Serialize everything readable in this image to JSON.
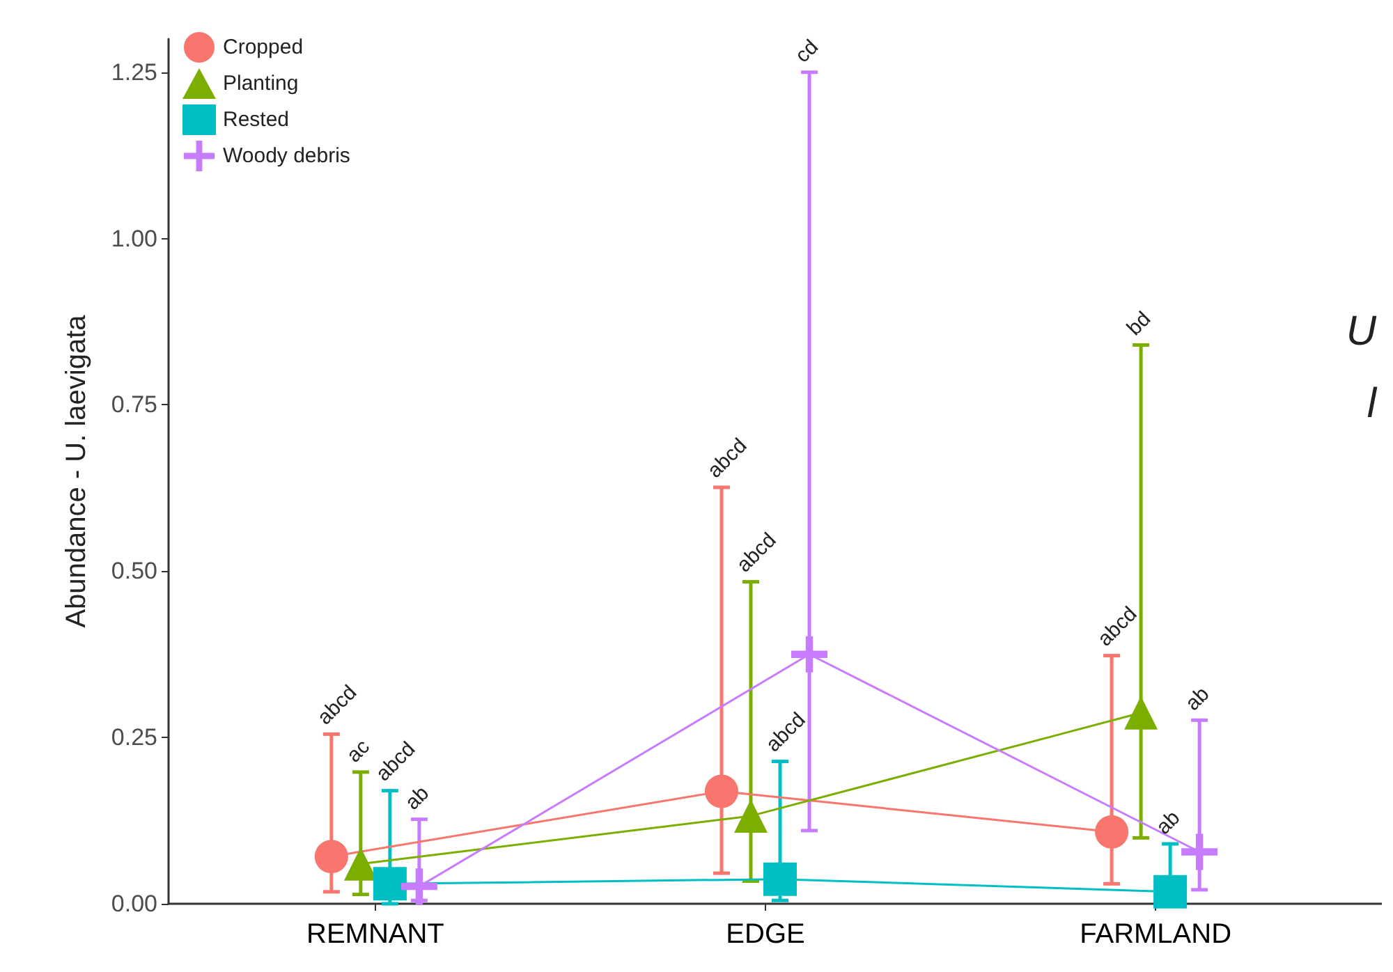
{
  "chart_data": {
    "type": "line",
    "ylabel": "Abundance - U. laevigata",
    "categories": [
      "REMNANT",
      "EDGE",
      "FARMLAND"
    ],
    "ylim": [
      0,
      1.3
    ],
    "yticks": [
      {
        "value": 0,
        "label": "0.00"
      },
      {
        "value": 0.25,
        "label": "0.25"
      },
      {
        "value": 0.5,
        "label": "0.50"
      },
      {
        "value": 0.75,
        "label": "0.75"
      },
      {
        "value": 1,
        "label": "1.00"
      },
      {
        "value": 1.25,
        "label": "1.25"
      }
    ],
    "grid": false,
    "legend": "top left",
    "line_style": "solid",
    "series": [
      {
        "name": "Cropped",
        "color": "#f8766d",
        "marker": "circle",
        "values": [
          0.071,
          0.169,
          0.108
        ],
        "errors": [
          [
            0.018,
            0.255
          ],
          [
            0.046,
            0.626
          ],
          [
            0.03,
            0.373
          ]
        ]
      },
      {
        "name": "Planting",
        "color": "#7cae00",
        "marker": "triangle",
        "values": [
          0.06,
          0.132,
          0.287
        ],
        "errors": [
          [
            0.014,
            0.198
          ],
          [
            0.034,
            0.484
          ],
          [
            0.099,
            0.84
          ]
        ]
      },
      {
        "name": "Rested",
        "color": "#00bfc4",
        "marker": "square",
        "values": [
          0.03,
          0.037,
          0.018
        ],
        "errors": [
          [
            0,
            0.17
          ],
          [
            0.005,
            0.214
          ],
          [
            0.018,
            0.09
          ]
        ]
      },
      {
        "name": "Woody debris",
        "color": "#c77cff",
        "marker": "cross",
        "values": [
          0.026,
          0.375,
          0.078
        ],
        "errors": [
          [
            0.005,
            0.127
          ],
          [
            0.11,
            1.25
          ],
          [
            0.021,
            0.276
          ]
        ]
      }
    ],
    "annotations": [
      "U",
      "l",
      "abcd",
      "ac",
      "abcd",
      "ab",
      "abcd",
      "abcd",
      "abcd",
      "cd",
      "abcd",
      "bd",
      "ab",
      "ab"
    ]
  }
}
